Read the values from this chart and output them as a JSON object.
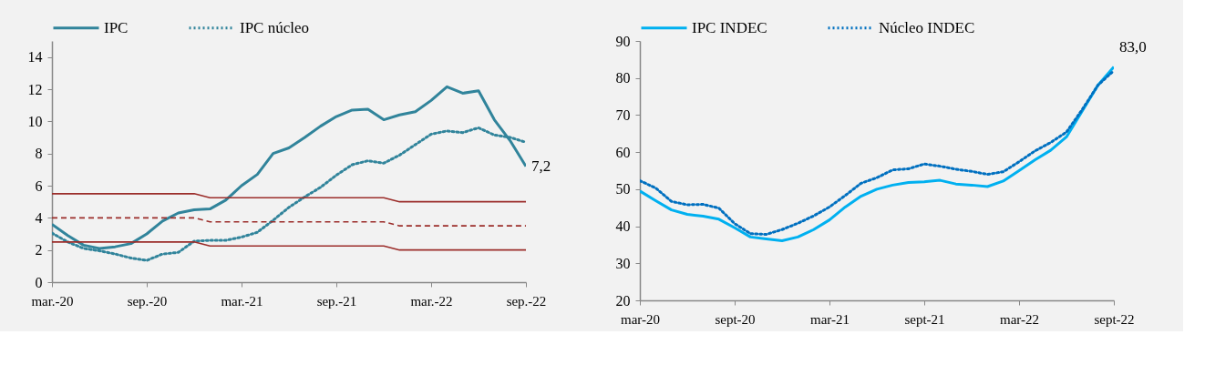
{
  "chart_data": [
    {
      "type": "line",
      "categories": [
        "mar.-20",
        null,
        null,
        null,
        null,
        null,
        "sep.-20",
        null,
        null,
        null,
        null,
        null,
        "mar.-21",
        null,
        null,
        null,
        null,
        null,
        "sep.-21",
        null,
        null,
        null,
        null,
        null,
        "mar.-22",
        null,
        null,
        null,
        null,
        null,
        "sep.-22"
      ],
      "ylim": [
        0,
        15
      ],
      "yticks": [
        0,
        2,
        4,
        6,
        8,
        10,
        12,
        14
      ],
      "legend": "top",
      "marker": "none",
      "grid": false,
      "series": [
        {
          "name": "IPC",
          "color": "#31849b",
          "line_style": "solid",
          "values": [
            3.6,
            2.9,
            2.3,
            2.1,
            2.2,
            2.4,
            3.0,
            3.8,
            4.3,
            4.5,
            4.55,
            5.1,
            6.0,
            6.7,
            8.0,
            8.35,
            9.0,
            9.7,
            10.3,
            10.7,
            10.75,
            10.1,
            10.4,
            10.6,
            11.3,
            12.15,
            11.75,
            11.9,
            10.1,
            8.8,
            7.2
          ],
          "value_labels": [
            null,
            null,
            null,
            null,
            null,
            null,
            null,
            null,
            null,
            null,
            null,
            null,
            null,
            null,
            null,
            null,
            null,
            null,
            null,
            null,
            null,
            null,
            null,
            null,
            null,
            null,
            null,
            null,
            null,
            null,
            "7,2"
          ]
        },
        {
          "name": "IPC núcleo",
          "color": "#31849b",
          "line_style": "dotted",
          "values": [
            3.05,
            2.5,
            2.1,
            1.95,
            1.75,
            1.5,
            1.35,
            1.75,
            1.85,
            2.55,
            2.6,
            2.6,
            2.8,
            3.1,
            3.85,
            4.65,
            5.3,
            5.9,
            6.65,
            7.3,
            7.55,
            7.4,
            7.9,
            8.55,
            9.2,
            9.4,
            9.3,
            9.6,
            9.15,
            9.0,
            8.7
          ]
        },
        {
          "color": "#9b2d2a",
          "line_style": "solid",
          "values": [
            5.5,
            5.5,
            5.5,
            5.5,
            5.5,
            5.5,
            5.5,
            5.5,
            5.5,
            5.5,
            5.25,
            5.25,
            5.25,
            5.25,
            5.25,
            5.25,
            5.25,
            5.25,
            5.25,
            5.25,
            5.25,
            5.25,
            5.0,
            5.0,
            5.0,
            5.0,
            5.0,
            5.0,
            5.0,
            5.0,
            5.0
          ]
        },
        {
          "color": "#9b2d2a",
          "line_style": "dashed",
          "values": [
            4.0,
            4.0,
            4.0,
            4.0,
            4.0,
            4.0,
            4.0,
            4.0,
            4.0,
            4.0,
            3.75,
            3.75,
            3.75,
            3.75,
            3.75,
            3.75,
            3.75,
            3.75,
            3.75,
            3.75,
            3.75,
            3.75,
            3.5,
            3.5,
            3.5,
            3.5,
            3.5,
            3.5,
            3.5,
            3.5,
            3.5
          ]
        },
        {
          "color": "#9b2d2a",
          "line_style": "solid",
          "values": [
            2.5,
            2.5,
            2.5,
            2.5,
            2.5,
            2.5,
            2.5,
            2.5,
            2.5,
            2.5,
            2.25,
            2.25,
            2.25,
            2.25,
            2.25,
            2.25,
            2.25,
            2.25,
            2.25,
            2.25,
            2.25,
            2.25,
            2.0,
            2.0,
            2.0,
            2.0,
            2.0,
            2.0,
            2.0,
            2.0,
            2.0
          ]
        }
      ]
    },
    {
      "type": "line",
      "categories": [
        "mar-20",
        null,
        null,
        null,
        null,
        null,
        "sept-20",
        null,
        null,
        null,
        null,
        null,
        "mar-21",
        null,
        null,
        null,
        null,
        null,
        "sept-21",
        null,
        null,
        null,
        null,
        null,
        "mar-22",
        null,
        null,
        null,
        null,
        null,
        "sept-22"
      ],
      "ylim": [
        20,
        90
      ],
      "yticks": [
        20,
        30,
        40,
        50,
        60,
        70,
        80,
        90
      ],
      "legend": "top",
      "marker": "none",
      "grid": false,
      "series": [
        {
          "name": "IPC INDEC",
          "color": "#00b0f0",
          "line_style": "solid",
          "values": [
            49.5,
            46.9,
            44.4,
            43.2,
            42.7,
            41.9,
            39.6,
            37.1,
            36.6,
            36.1,
            37.1,
            39.1,
            41.7,
            45.2,
            48.1,
            50.0,
            51.1,
            51.8,
            52.0,
            52.4,
            51.4,
            51.1,
            50.7,
            52.2,
            55.0,
            57.9,
            60.5,
            64.1,
            71.1,
            78.1,
            83.0
          ],
          "value_labels": [
            null,
            null,
            null,
            null,
            null,
            null,
            null,
            null,
            null,
            null,
            null,
            null,
            null,
            null,
            null,
            null,
            null,
            null,
            null,
            null,
            null,
            null,
            null,
            null,
            null,
            null,
            null,
            null,
            null,
            null,
            "83,0"
          ]
        },
        {
          "name": "Núcleo INDEC",
          "color": "#0070c0",
          "line_style": "dotted",
          "values": [
            52.3,
            50.3,
            46.7,
            45.8,
            45.9,
            44.9,
            40.7,
            38.0,
            37.8,
            39.1,
            40.8,
            42.8,
            45.2,
            48.3,
            51.6,
            53.1,
            55.2,
            55.5,
            56.8,
            56.2,
            55.4,
            54.8,
            54.0,
            54.7,
            57.4,
            60.3,
            62.6,
            65.4,
            71.5,
            78.1,
            82.0
          ]
        }
      ]
    }
  ]
}
